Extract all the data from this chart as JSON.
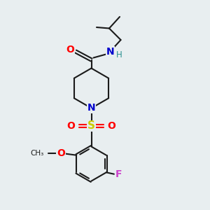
{
  "background_color": "#e8eef0",
  "atom_colors": {
    "C": "#1a1a1a",
    "N": "#0000cc",
    "O": "#ff0000",
    "S": "#cccc00",
    "F": "#cc44cc",
    "H": "#2a9090"
  },
  "bond_color": "#1a1a1a",
  "bond_width": 1.5,
  "figsize": [
    3.0,
    3.0
  ],
  "dpi": 100,
  "xlim": [
    0,
    10
  ],
  "ylim": [
    0,
    10
  ]
}
